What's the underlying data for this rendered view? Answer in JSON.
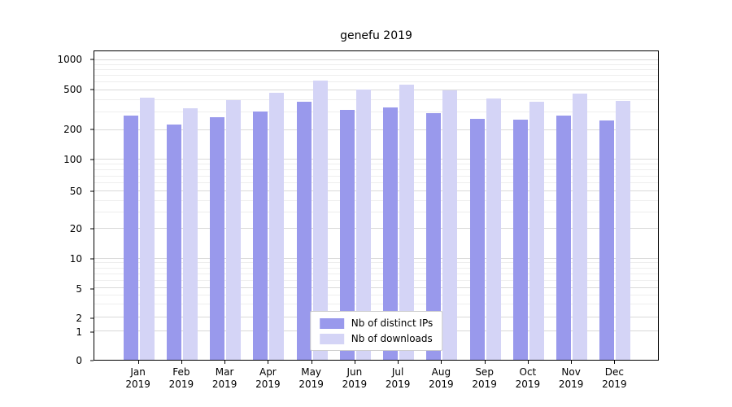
{
  "chart_data": {
    "type": "bar",
    "title": "genefu 2019",
    "scale": "log",
    "grid": true,
    "ylim": [
      0,
      1000
    ],
    "y_ticks": [
      0,
      1,
      2,
      5,
      10,
      20,
      50,
      100,
      200,
      500,
      1000
    ],
    "categories": [
      "Jan",
      "Feb",
      "Mar",
      "Apr",
      "May",
      "Jun",
      "Jul",
      "Aug",
      "Sep",
      "Oct",
      "Nov",
      "Dec"
    ],
    "year_label": "2019",
    "legend_position": "lower center",
    "series": [
      {
        "name": "Nb of distinct IPs",
        "color": "#9999ec",
        "values": [
          280,
          225,
          270,
          305,
          380,
          320,
          335,
          295,
          260,
          255,
          280,
          250
        ]
      },
      {
        "name": "Nb of downloads",
        "color": "#d4d4f6",
        "values": [
          420,
          330,
          400,
          470,
          630,
          510,
          570,
          495,
          410,
          380,
          460,
          390
        ]
      }
    ]
  }
}
